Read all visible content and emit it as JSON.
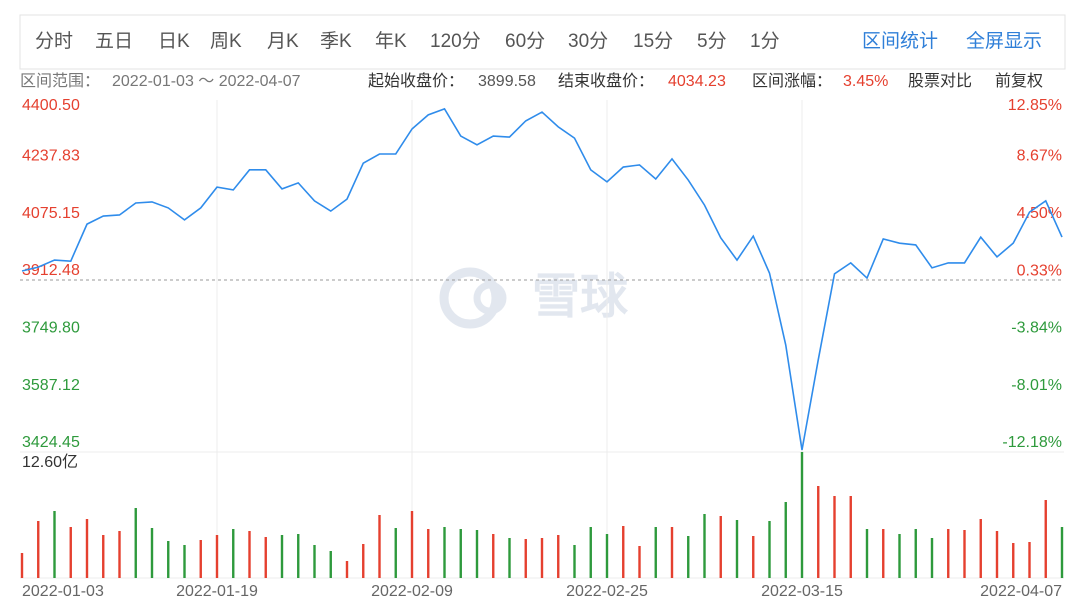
{
  "toolbar": {
    "periods": [
      "分时",
      "五日",
      "日K",
      "周K",
      "月K",
      "季K",
      "年K",
      "120分",
      "60分",
      "30分",
      "15分",
      "5分",
      "1分"
    ],
    "actions": [
      "区间统计",
      "全屏显示"
    ]
  },
  "info": {
    "range_label": "区间范围：",
    "range": "2022-01-03 ～ 2022-04-07",
    "start_label": "起始收盘价：",
    "start_value": "3899.58",
    "end_label": "结束收盘价：",
    "end_value": "4034.23",
    "change_label": "区间涨幅：",
    "change_value": "3.45%",
    "compare": "股票对比",
    "adjust": "前复权"
  },
  "watermark": "雪球",
  "chart_data": [
    {
      "type": "line",
      "categories": [
        "2022-01-03",
        null,
        null,
        null,
        null,
        null,
        null,
        null,
        null,
        null,
        null,
        null,
        "2022-01-19",
        null,
        null,
        null,
        null,
        null,
        null,
        null,
        null,
        null,
        null,
        null,
        "2022-02-09",
        null,
        null,
        null,
        null,
        null,
        null,
        null,
        null,
        null,
        null,
        null,
        "2022-02-25",
        null,
        null,
        null,
        null,
        null,
        null,
        null,
        null,
        null,
        null,
        null,
        "2022-03-15",
        null,
        null,
        null,
        null,
        null,
        null,
        null,
        null,
        null,
        null,
        null,
        null,
        null,
        null,
        null,
        "2022-04-07"
      ],
      "values": [
        3938,
        3949,
        3969,
        3966,
        4071,
        4094,
        4097,
        4131,
        4134,
        4117,
        4083,
        4117,
        4176,
        4168,
        4225,
        4225,
        4171,
        4188,
        4137,
        4108,
        4142,
        4244,
        4270,
        4270,
        4341,
        4381,
        4398,
        4321,
        4296,
        4321,
        4318,
        4364,
        4389,
        4347,
        4315,
        4225,
        4191,
        4233,
        4239,
        4199,
        4256,
        4196,
        4125,
        4032,
        3969,
        4037,
        3932,
        3728,
        3430,
        3686,
        3930,
        3961,
        3918,
        4029,
        4017,
        4012,
        3947,
        3961,
        3961,
        4034,
        3978,
        4017,
        4105,
        4137,
        4034.23
      ],
      "color": "#2f8ceb",
      "ylim": [
        3424.45,
        4400.5
      ],
      "yticks": [
        {
          "value": 4400.5,
          "label": "4400.50"
        },
        {
          "value": 4237.83,
          "label": "4237.83"
        },
        {
          "value": 4075.15,
          "label": "4075.15"
        },
        {
          "value": 3912.48,
          "label": "3912.48"
        },
        {
          "value": 3749.8,
          "label": "3749.80"
        },
        {
          "value": 3587.12,
          "label": "3587.12"
        },
        {
          "value": 3424.45,
          "label": "3424.45"
        }
      ],
      "y2lim": [
        -12.18,
        12.85
      ],
      "y2ticks": [
        {
          "value": 12.85,
          "label": "12.85%"
        },
        {
          "value": 8.67,
          "label": "8.67%"
        },
        {
          "value": 4.5,
          "label": "4.50%"
        },
        {
          "value": 0.33,
          "label": "0.33%"
        },
        {
          "value": -3.84,
          "label": "-3.84%"
        },
        {
          "value": -8.01,
          "label": "-8.01%"
        },
        {
          "value": -12.18,
          "label": "-12.18%"
        }
      ],
      "up_color": "#e5402f",
      "down_color": "#2e9a3c"
    },
    {
      "type": "bar",
      "values": [
        2.5,
        5.7,
        6.7,
        5.1,
        5.9,
        4.3,
        4.7,
        7.0,
        5.0,
        3.7,
        3.3,
        3.8,
        4.3,
        4.9,
        4.7,
        4.1,
        4.3,
        4.4,
        3.3,
        2.7,
        1.7,
        3.4,
        6.3,
        5.0,
        6.7,
        4.9,
        5.1,
        4.9,
        4.8,
        4.4,
        4.0,
        3.9,
        4.0,
        4.3,
        3.3,
        5.1,
        4.4,
        5.2,
        3.2,
        5.1,
        5.1,
        4.2,
        6.4,
        6.2,
        5.8,
        4.2,
        5.7,
        7.6,
        12.6,
        9.2,
        8.2,
        8.2,
        4.9,
        4.9,
        4.4,
        4.9,
        4.0,
        4.9,
        4.8,
        5.9,
        4.7,
        3.5,
        3.6,
        7.8,
        5.1
      ],
      "colors": [
        "#e5402f",
        "#e5402f",
        "#2e9a3c",
        "#e5402f",
        "#e5402f",
        "#e5402f",
        "#e5402f",
        "#2e9a3c",
        "#2e9a3c",
        "#2e9a3c",
        "#2e9a3c",
        "#e5402f",
        "#e5402f",
        "#2e9a3c",
        "#e5402f",
        "#e5402f",
        "#2e9a3c",
        "#2e9a3c",
        "#2e9a3c",
        "#2e9a3c",
        "#e5402f",
        "#e5402f",
        "#e5402f",
        "#2e9a3c",
        "#e5402f",
        "#e5402f",
        "#2e9a3c",
        "#2e9a3c",
        "#2e9a3c",
        "#e5402f",
        "#2e9a3c",
        "#e5402f",
        "#e5402f",
        "#e5402f",
        "#2e9a3c",
        "#2e9a3c",
        "#2e9a3c",
        "#e5402f",
        "#e5402f",
        "#2e9a3c",
        "#e5402f",
        "#2e9a3c",
        "#2e9a3c",
        "#e5402f",
        "#2e9a3c",
        "#e5402f",
        "#2e9a3c",
        "#2e9a3c",
        "#2e9a3c",
        "#e5402f",
        "#e5402f",
        "#e5402f",
        "#2e9a3c",
        "#e5402f",
        "#2e9a3c",
        "#2e9a3c",
        "#2e9a3c",
        "#e5402f",
        "#e5402f",
        "#e5402f",
        "#e5402f",
        "#e5402f",
        "#e5402f",
        "#e5402f",
        "#2e9a3c"
      ],
      "ylim": [
        0,
        12.6
      ],
      "yticks": [
        {
          "value": 12.6,
          "label": "12.60亿"
        }
      ]
    }
  ]
}
